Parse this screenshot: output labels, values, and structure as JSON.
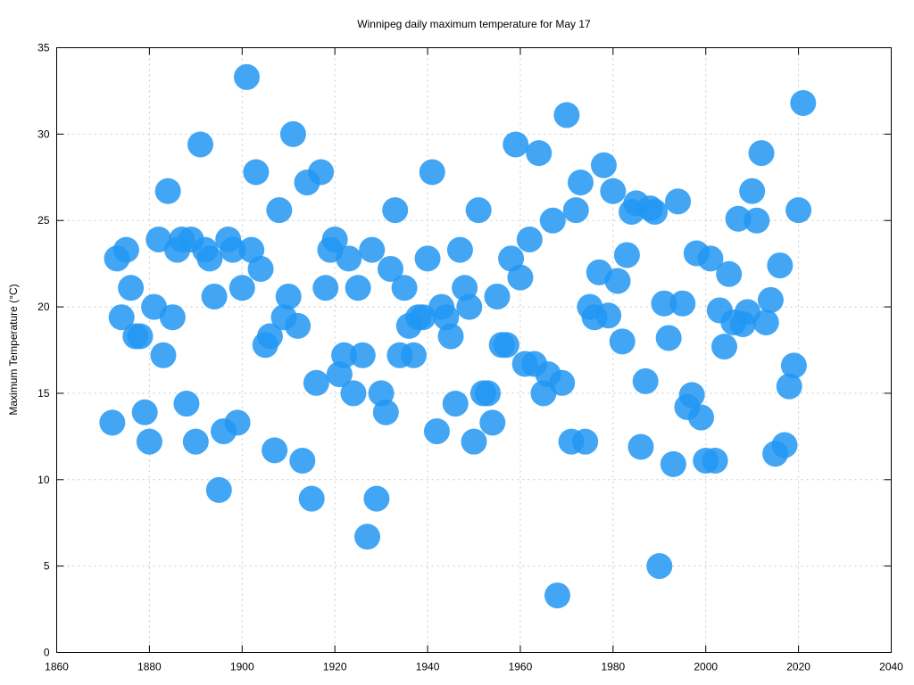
{
  "chart_data": {
    "type": "scatter",
    "title": "Winnipeg daily maximum temperature for May 17",
    "xlabel": "",
    "ylabel": "Maximum Temperature (°C)",
    "xlim": [
      1860,
      2040
    ],
    "ylim": [
      0,
      35
    ],
    "xticks": [
      1860,
      1880,
      1900,
      1920,
      1940,
      1960,
      1980,
      2000,
      2020,
      2040
    ],
    "yticks": [
      0,
      5,
      10,
      15,
      20,
      25,
      30,
      35
    ],
    "grid": true,
    "marker_color": "#2196F3",
    "points": [
      [
        1872,
        13.3
      ],
      [
        1873,
        22.8
      ],
      [
        1874,
        19.4
      ],
      [
        1875,
        23.3
      ],
      [
        1876,
        21.1
      ],
      [
        1877,
        18.3
      ],
      [
        1878,
        18.3
      ],
      [
        1879,
        13.9
      ],
      [
        1880,
        12.2
      ],
      [
        1881,
        20.0
      ],
      [
        1882,
        23.9
      ],
      [
        1883,
        17.2
      ],
      [
        1884,
        26.7
      ],
      [
        1885,
        19.4
      ],
      [
        1886,
        23.3
      ],
      [
        1887,
        23.9
      ],
      [
        1888,
        14.4
      ],
      [
        1889,
        23.9
      ],
      [
        1890,
        12.2
      ],
      [
        1891,
        29.4
      ],
      [
        1892,
        23.3
      ],
      [
        1893,
        22.8
      ],
      [
        1894,
        20.6
      ],
      [
        1895,
        9.4
      ],
      [
        1896,
        12.8
      ],
      [
        1897,
        23.9
      ],
      [
        1898,
        23.3
      ],
      [
        1899,
        13.3
      ],
      [
        1900,
        21.1
      ],
      [
        1901,
        33.3
      ],
      [
        1902,
        23.3
      ],
      [
        1903,
        27.8
      ],
      [
        1904,
        22.2
      ],
      [
        1905,
        17.8
      ],
      [
        1906,
        18.3
      ],
      [
        1907,
        11.7
      ],
      [
        1908,
        25.6
      ],
      [
        1909,
        19.4
      ],
      [
        1910,
        20.6
      ],
      [
        1911,
        30.0
      ],
      [
        1912,
        18.9
      ],
      [
        1913,
        11.1
      ],
      [
        1914,
        27.2
      ],
      [
        1915,
        8.9
      ],
      [
        1916,
        15.6
      ],
      [
        1917,
        27.8
      ],
      [
        1918,
        21.1
      ],
      [
        1919,
        23.3
      ],
      [
        1920,
        23.9
      ],
      [
        1921,
        16.1
      ],
      [
        1922,
        17.2
      ],
      [
        1923,
        22.8
      ],
      [
        1924,
        15.0
      ],
      [
        1925,
        21.1
      ],
      [
        1926,
        17.2
      ],
      [
        1927,
        6.7
      ],
      [
        1928,
        23.3
      ],
      [
        1929,
        8.9
      ],
      [
        1930,
        15.0
      ],
      [
        1931,
        13.9
      ],
      [
        1932,
        22.2
      ],
      [
        1933,
        25.6
      ],
      [
        1934,
        17.2
      ],
      [
        1935,
        21.1
      ],
      [
        1936,
        18.9
      ],
      [
        1937,
        17.2
      ],
      [
        1938,
        19.4
      ],
      [
        1939,
        19.4
      ],
      [
        1940,
        22.8
      ],
      [
        1941,
        27.8
      ],
      [
        1942,
        12.8
      ],
      [
        1943,
        20.0
      ],
      [
        1944,
        19.4
      ],
      [
        1945,
        18.3
      ],
      [
        1946,
        14.4
      ],
      [
        1947,
        23.3
      ],
      [
        1948,
        21.1
      ],
      [
        1949,
        20.0
      ],
      [
        1950,
        12.2
      ],
      [
        1951,
        25.6
      ],
      [
        1952,
        15.0
      ],
      [
        1953,
        15.0
      ],
      [
        1954,
        13.3
      ],
      [
        1955,
        20.6
      ],
      [
        1956,
        17.8
      ],
      [
        1957,
        17.8
      ],
      [
        1958,
        22.8
      ],
      [
        1959,
        29.4
      ],
      [
        1960,
        21.7
      ],
      [
        1961,
        16.7
      ],
      [
        1962,
        23.9
      ],
      [
        1963,
        16.7
      ],
      [
        1964,
        28.9
      ],
      [
        1965,
        15.0
      ],
      [
        1966,
        16.1
      ],
      [
        1967,
        25.0
      ],
      [
        1968,
        3.3
      ],
      [
        1969,
        15.6
      ],
      [
        1970,
        31.1
      ],
      [
        1971,
        12.2
      ],
      [
        1972,
        25.6
      ],
      [
        1973,
        27.2
      ],
      [
        1974,
        12.2
      ],
      [
        1975,
        20.0
      ],
      [
        1976,
        19.4
      ],
      [
        1977,
        22.0
      ],
      [
        1978,
        28.2
      ],
      [
        1979,
        19.5
      ],
      [
        1980,
        26.7
      ],
      [
        1981,
        21.5
      ],
      [
        1982,
        18.0
      ],
      [
        1983,
        23.0
      ],
      [
        1984,
        25.5
      ],
      [
        1985,
        26.0
      ],
      [
        1986,
        11.9
      ],
      [
        1987,
        15.7
      ],
      [
        1988,
        25.7
      ],
      [
        1989,
        25.5
      ],
      [
        1990,
        5.0
      ],
      [
        1991,
        20.2
      ],
      [
        1992,
        18.2
      ],
      [
        1993,
        10.9
      ],
      [
        1994,
        26.1
      ],
      [
        1995,
        20.2
      ],
      [
        1996,
        14.2
      ],
      [
        1997,
        14.9
      ],
      [
        1998,
        23.1
      ],
      [
        1999,
        13.6
      ],
      [
        2000,
        11.1
      ],
      [
        2001,
        22.8
      ],
      [
        2002,
        11.1
      ],
      [
        2003,
        19.8
      ],
      [
        2004,
        17.7
      ],
      [
        2005,
        21.9
      ],
      [
        2006,
        19.1
      ],
      [
        2007,
        25.1
      ],
      [
        2008,
        19.0
      ],
      [
        2009,
        19.7
      ],
      [
        2010,
        26.7
      ],
      [
        2011,
        25.0
      ],
      [
        2012,
        28.9
      ],
      [
        2013,
        19.1
      ],
      [
        2014,
        20.4
      ],
      [
        2015,
        11.5
      ],
      [
        2016,
        22.4
      ],
      [
        2017,
        12.0
      ],
      [
        2018,
        15.4
      ],
      [
        2019,
        16.6
      ],
      [
        2020,
        25.6
      ],
      [
        2021,
        31.8
      ]
    ]
  }
}
